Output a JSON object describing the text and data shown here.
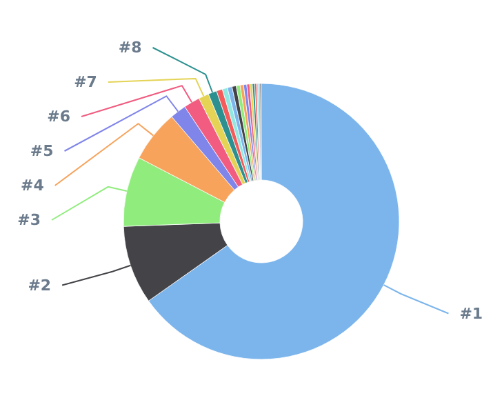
{
  "chart_data": {
    "type": "donut",
    "categories": [
      "#1",
      "#2",
      "#3",
      "#4",
      "#5",
      "#6",
      "#7",
      "#8",
      null,
      null,
      null,
      null,
      null,
      null,
      null,
      null,
      null,
      null,
      null,
      null,
      null,
      null
    ],
    "values": [
      65.24,
      9.2,
      8.2,
      6.1,
      1.9,
      1.9,
      1.2,
      1.0,
      0.7,
      0.6,
      0.55,
      0.5,
      0.45,
      0.4,
      0.38,
      0.34,
      0.3,
      0.27,
      0.24,
      0.21,
      0.18,
      0.15
    ],
    "colors": [
      "#7cb5ec",
      "#434348",
      "#90ed7d",
      "#f7a35c",
      "#8085e9",
      "#f15c80",
      "#e4d354",
      "#2b908f",
      "#f45b5b",
      "#91e8e1",
      "#7cb5ec",
      "#434348",
      "#90ed7d",
      "#f7a35c",
      "#8085e9",
      "#f15c80",
      "#e4d354",
      "#2b908f",
      "#f45b5b",
      "#91e8e1",
      "#7cb5ec",
      "#434348"
    ]
  }
}
